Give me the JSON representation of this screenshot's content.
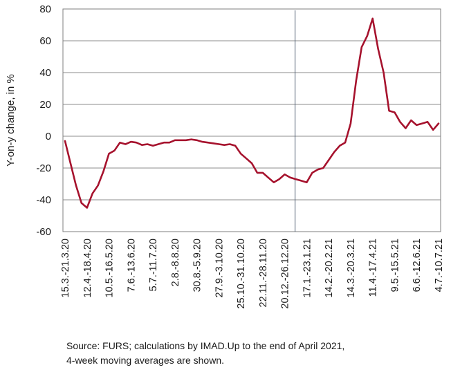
{
  "chart_data": {
    "type": "line",
    "title": "",
    "xlabel": "",
    "ylabel": "Y-on-y change, in %",
    "ylim": [
      -60,
      80
    ],
    "yticks": [
      -60,
      -40,
      -20,
      0,
      20,
      40,
      60,
      80
    ],
    "grid": true,
    "legend": "none",
    "line_color": "#a6122d",
    "marker_line_color": "#4a5a70",
    "vertical_marker_after_week": 41,
    "x_tick_labels": [
      "15.3.-21.3.20",
      "12.4.-18.4.20",
      "10.5.-16.5.20",
      "7.6.-13.6.20",
      "5.7.-11.7.20",
      "2.8.-8.8.20",
      "30.8.-5.9.20",
      "27.9.-3.10.20",
      "25.10.-31.10.20",
      "22.11.-28.11.20",
      "20.12.-26.12.20",
      "17.1.-23.1.21",
      "14.2.-20.2.21",
      "14.3.-20.3.21",
      "11.4.-17.4.21",
      "9.5.-15.5.21",
      "6.6.-12.6.21",
      "4.7.-10.7.21"
    ],
    "series": [
      {
        "name": "",
        "values": [
          -3,
          -17,
          -31,
          -42,
          -45,
          -36,
          -31,
          -22,
          -11,
          -9,
          -4,
          -5,
          -3.5,
          -4,
          -5.5,
          -5,
          -6,
          -5,
          -4,
          -4,
          -2.5,
          -2.5,
          -2.5,
          -2,
          -2.5,
          -3.5,
          -4,
          -4.5,
          -5,
          -5.5,
          -5,
          -6,
          -11,
          -14,
          -17,
          -23,
          -23,
          -26,
          -29,
          -27,
          -24,
          -26,
          -27,
          -28,
          -29,
          -23,
          -21,
          -20,
          -15,
          -10,
          -6,
          -4,
          8,
          35,
          56,
          63,
          74,
          55,
          40,
          16,
          15,
          9,
          5,
          10,
          7,
          8,
          9,
          4,
          8
        ]
      }
    ]
  },
  "note": {
    "line1": "Source: FURS; calculations by IMAD.Up to the end of April 2021,",
    "line2": "4-week moving averages are shown."
  }
}
